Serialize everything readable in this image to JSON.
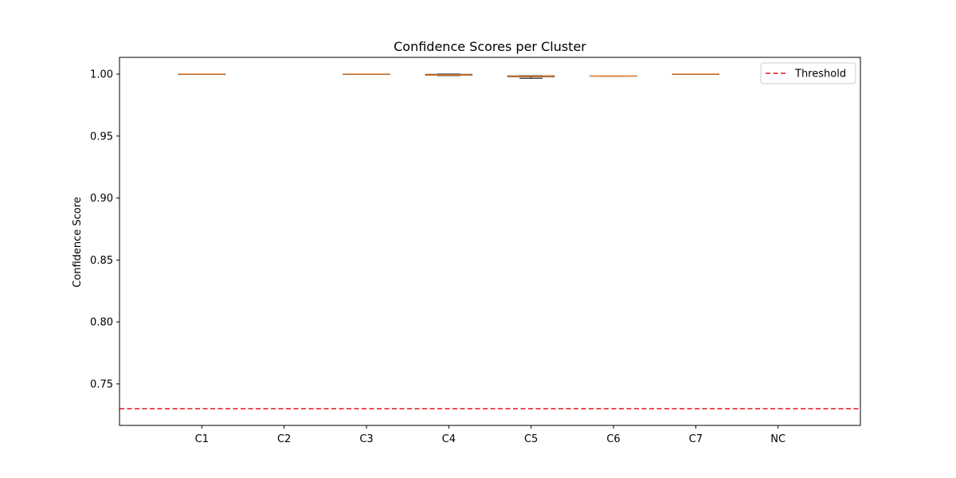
{
  "chart_data": {
    "type": "box",
    "title": "Confidence Scores per Cluster",
    "xlabel": "",
    "ylabel": "Confidence Score",
    "ylim": [
      0.7165,
      1.0135
    ],
    "yticks": [
      0.75,
      0.8,
      0.85,
      0.9,
      0.95,
      1.0
    ],
    "ytick_labels": [
      "0.75",
      "0.80",
      "0.85",
      "0.90",
      "0.95",
      "1.00"
    ],
    "categories": [
      "C1",
      "C2",
      "C3",
      "C4",
      "C5",
      "C6",
      "C7",
      "NC"
    ],
    "boxes": [
      {
        "category": "C1",
        "min": 0.9999,
        "q1": 0.9999,
        "median": 1.0,
        "q3": 1.0,
        "max": 1.0
      },
      {
        "category": "C2",
        "min": null,
        "q1": null,
        "median": null,
        "q3": null,
        "max": null
      },
      {
        "category": "C3",
        "min": 0.9999,
        "q1": 0.9999,
        "median": 1.0,
        "q3": 1.0,
        "max": 1.0
      },
      {
        "category": "C4",
        "min": 0.9988,
        "q1": 0.999,
        "median": 0.9993,
        "q3": 0.9998,
        "max": 1.0
      },
      {
        "category": "C5",
        "min": 0.9966,
        "q1": 0.9978,
        "median": 0.9983,
        "q3": 0.9986,
        "max": 0.9987
      },
      {
        "category": "C6",
        "min": 0.9983,
        "q1": 0.9984,
        "median": 0.9985,
        "q3": 0.9986,
        "max": 0.9987
      },
      {
        "category": "C7",
        "min": 0.9999,
        "q1": 0.9999,
        "median": 1.0,
        "q3": 1.0,
        "max": 1.0
      },
      {
        "category": "NC",
        "min": null,
        "q1": null,
        "median": null,
        "q3": null,
        "max": null
      }
    ],
    "threshold": {
      "label": "Threshold",
      "value": 0.73,
      "color": "#e8121c",
      "style": "dashed"
    },
    "legend": {
      "position": "top-right",
      "entries": [
        "Threshold"
      ]
    },
    "colors": {
      "median": "#e8883a",
      "box": "#000000"
    },
    "grid": false
  }
}
